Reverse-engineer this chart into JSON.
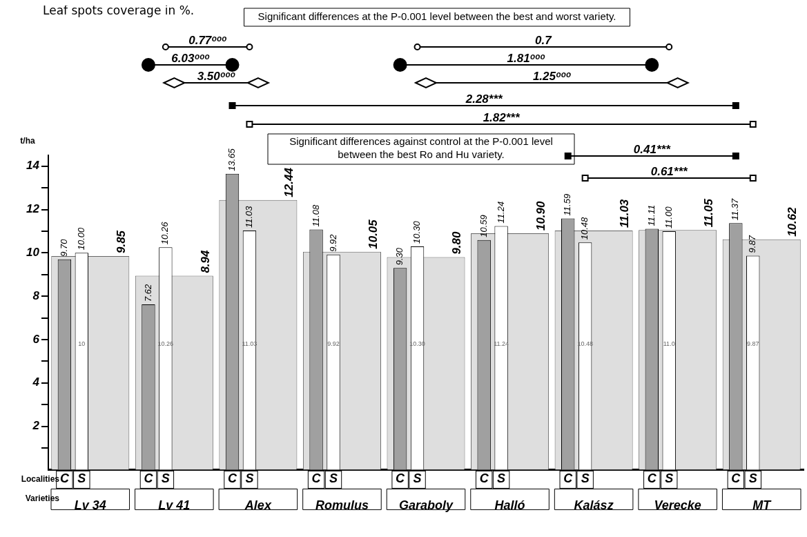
{
  "chart_data": {
    "type": "bar",
    "title": "Leaf spots coverage in %.",
    "ylabel": "t/ha",
    "categories": [
      "Lv 34",
      "Lv 41",
      "Alex",
      "Romulus",
      "Garaboly",
      "Halló",
      "Kalász",
      "Verecke",
      "MT"
    ],
    "series": [
      {
        "name": "C",
        "color": "#a0a0a0",
        "values": [
          9.7,
          7.62,
          13.65,
          11.08,
          9.3,
          10.59,
          11.59,
          11.11,
          11.37
        ],
        "value_labels": [
          "9.70",
          "7.62",
          "13.65",
          "11.08",
          "9.30",
          "10.59",
          "11.59",
          "11.11",
          "11.37"
        ]
      },
      {
        "name": "S",
        "color": "#ffffff",
        "values": [
          10.0,
          10.26,
          11.03,
          9.92,
          10.3,
          11.24,
          10.48,
          11.0,
          9.87
        ],
        "value_labels": [
          "10.00",
          "10.26",
          "11.03",
          "9.92",
          "10.30",
          "11.24",
          "10.48",
          "11.00",
          "9.87"
        ]
      },
      {
        "color": "#dedede",
        "values": [
          9.85,
          8.94,
          12.44,
          10.05,
          9.8,
          10.9,
          11.03,
          11.05,
          10.62
        ],
        "value_labels": [
          "9.85",
          "8.94",
          "12.44",
          "10.05",
          "9.80",
          "10.90",
          "11.03",
          "11.05",
          "10.62"
        ]
      }
    ],
    "ylim": [
      0,
      14.5
    ],
    "yticks": [
      {
        "value": 1,
        "label": null
      },
      2,
      {
        "value": 3,
        "label": null
      },
      4,
      {
        "value": 5,
        "label": null
      },
      6,
      {
        "value": 7,
        "label": null
      },
      8,
      {
        "value": 9,
        "label": null
      },
      10,
      {
        "value": 11,
        "label": null
      },
      12,
      {
        "value": 13,
        "label": null
      },
      14
    ],
    "annotations": [
      "Significant differences at the P-0.001 level between the best and worst variety.",
      "0.77ᵒᵒᵒ",
      "6.03ᵒᵒᵒ",
      "3.50ᵒᵒᵒ",
      "0.7",
      "1.81ᵒᵒᵒ",
      "1.25ᵒᵒᵒ",
      "2.28***",
      "1.82***",
      "0.41***",
      "0.61***",
      "Significant differences against control at the P-0.001 level between the best Ro and Hu variety.",
      "Localities",
      "Varieties",
      {
        "text": "10",
        "x": "Lv 34",
        "y": 5.8
      },
      {
        "text": "10.26",
        "x": "Lv 41",
        "y": 5.8
      },
      {
        "text": "11.03",
        "x": "Alex",
        "y": 5.8
      },
      {
        "text": "9.92",
        "x": "Romulus",
        "y": 5.8
      },
      {
        "text": "10.30",
        "x": "Garaboly",
        "y": 5.8
      },
      {
        "text": "11.24",
        "x": "Halló",
        "y": 5.8
      },
      {
        "text": "10.48",
        "x": "Kalász",
        "y": 5.8
      },
      {
        "text": "11.0",
        "x": "Verecke",
        "y": 5.8
      },
      {
        "text": "9.87",
        "x": "MT",
        "y": 5.8
      }
    ]
  }
}
